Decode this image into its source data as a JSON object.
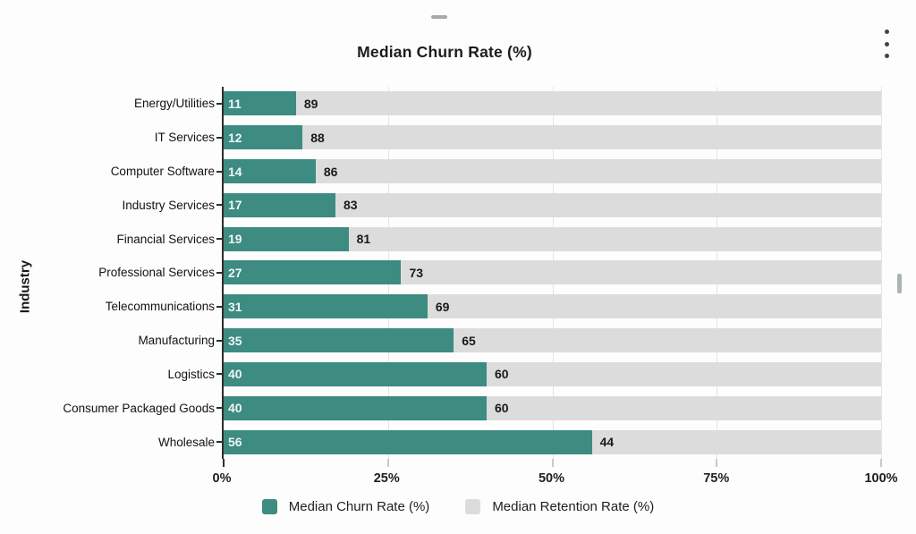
{
  "header": {
    "title": "Median Churn Rate (%)"
  },
  "icons": {
    "kebab_menu": "vertical-three-dots",
    "top_dash": "dash-indicator",
    "scrollbar": "scrollbar-thumb"
  },
  "colors": {
    "churn": "#3d8b81",
    "retention": "#dcdcdc",
    "gridline": "#e4e4e4",
    "axis": "#2e2e2e",
    "text": "#1a1a1a",
    "churn_value_label": "#eef6f5",
    "background": "#fdfdfd"
  },
  "chart_data": {
    "type": "bar",
    "orientation": "horizontal",
    "stacked": true,
    "title": "Median Churn Rate (%)",
    "xlabel": "",
    "ylabel": "Industry",
    "xlim": [
      0,
      100
    ],
    "grid": true,
    "legend_position": "bottom",
    "x_ticks": [
      "0%",
      "25%",
      "50%",
      "75%",
      "100%"
    ],
    "x_tick_values": [
      0,
      25,
      50,
      75,
      100
    ],
    "categories": [
      "Energy/Utilities",
      "IT Services",
      "Computer Software",
      "Industry Services",
      "Financial Services",
      "Professional Services",
      "Telecommunications",
      "Manufacturing",
      "Logistics",
      "Consumer Packaged Goods",
      "Wholesale"
    ],
    "series": [
      {
        "name": "Median Churn Rate (%)",
        "color": "#3d8b81",
        "values": [
          11,
          12,
          14,
          17,
          19,
          27,
          31,
          35,
          40,
          40,
          56
        ]
      },
      {
        "name": "Median Retention Rate (%)",
        "color": "#dcdcdc",
        "values": [
          89,
          88,
          86,
          83,
          81,
          73,
          69,
          65,
          60,
          60,
          44
        ]
      }
    ]
  }
}
